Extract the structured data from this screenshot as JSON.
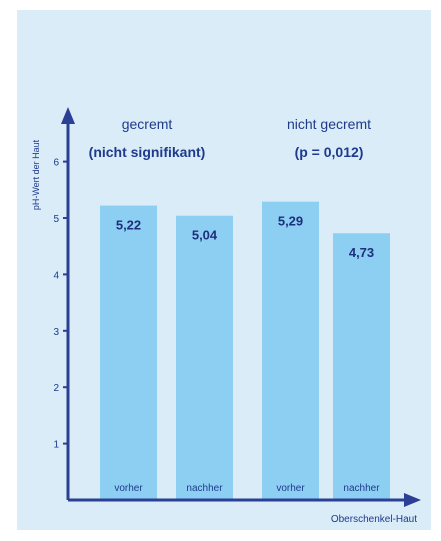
{
  "chart_data": {
    "type": "bar",
    "title": "",
    "xlabel": "Oberschenkel-Haut",
    "ylabel": "pH-Wert der Haut",
    "ylim": [
      0,
      6.9
    ],
    "yticks": [
      "1",
      "2",
      "3",
      "4",
      "5",
      "6"
    ],
    "categories": [
      "vorher",
      "nachher",
      "vorher",
      "nachher"
    ],
    "values": [
      5.22,
      5.04,
      5.29,
      4.73
    ],
    "value_labels": [
      "5,22",
      "5,04",
      "5,29",
      "4,73"
    ],
    "groups": [
      {
        "label_line1": "gecremt",
        "label_line2": "(nicht signifikant)",
        "bar_indices": [
          0,
          1
        ]
      },
      {
        "label_line1": "nicht gecremt",
        "label_line2": "(p = 0,012)",
        "bar_indices": [
          2,
          3
        ]
      }
    ],
    "grid": false,
    "legend": "none"
  },
  "colors": {
    "panel_background": "#d9ecf8",
    "bar_fill": "#8dcff2",
    "axis": "#2b3f95",
    "text": "#1f3a8c",
    "bar_value_text": "#1e2f7c"
  }
}
